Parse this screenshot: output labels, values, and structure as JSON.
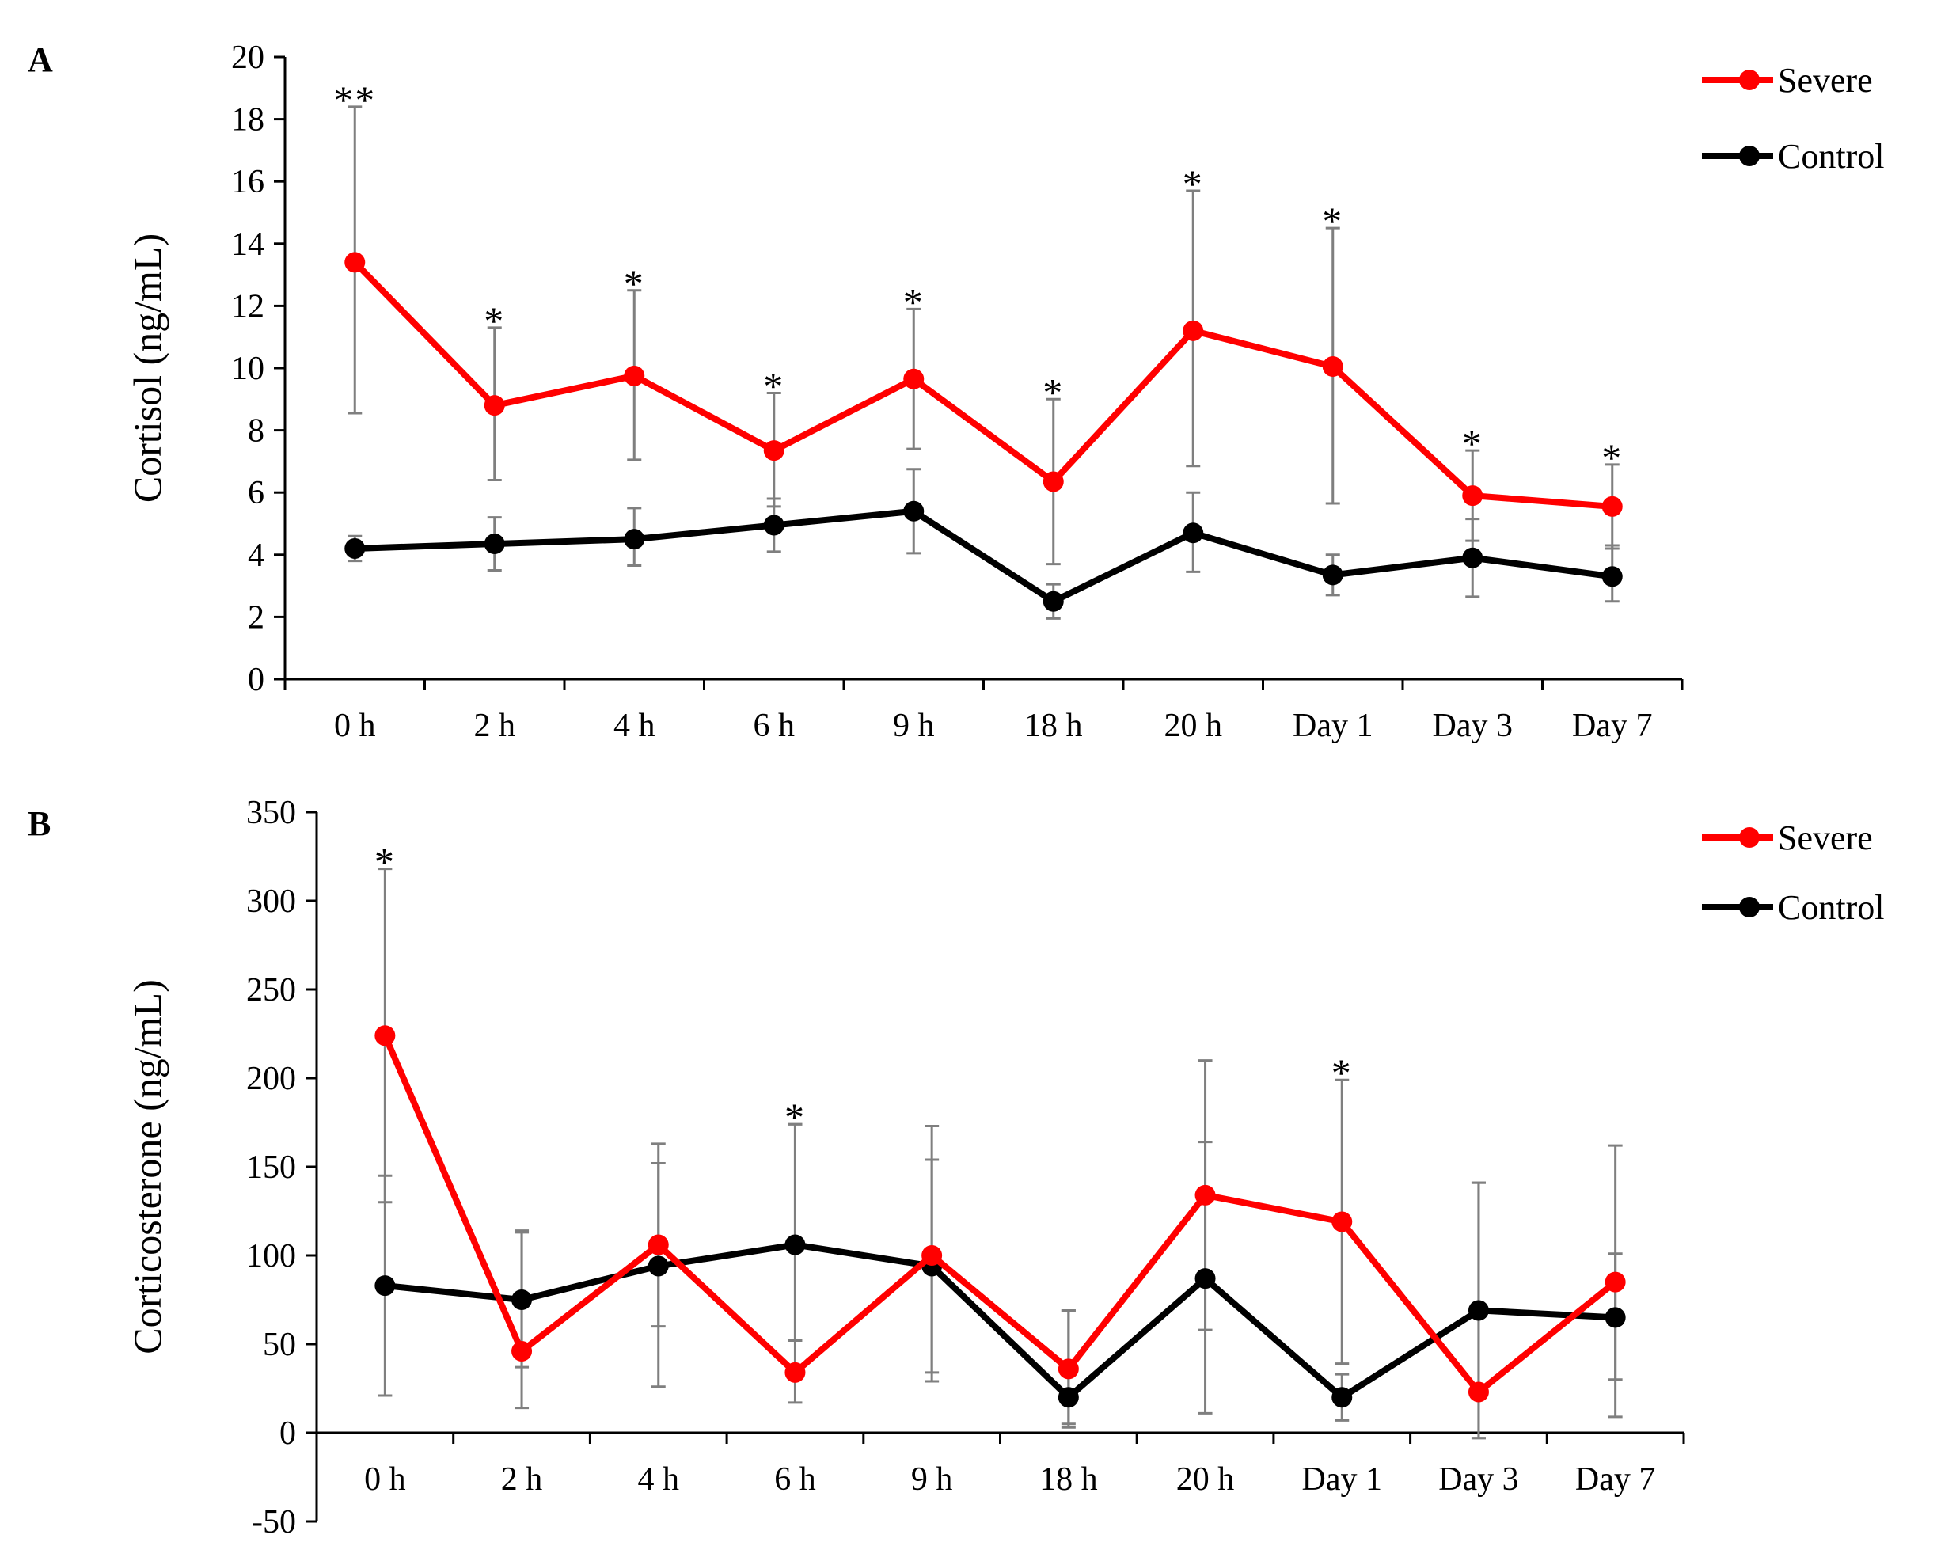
{
  "chart_data": [
    {
      "type": "line",
      "panel_label": "A",
      "title": "",
      "xlabel": "",
      "ylabel": "Cortisol (ng/mL)",
      "categories": [
        "0 h",
        "2 h",
        "4 h",
        "6 h",
        "9 h",
        "18 h",
        "20 h",
        "Day 1",
        "Day 3",
        "Day 7"
      ],
      "ylim": [
        0,
        20
      ],
      "yticks": [
        0,
        2,
        4,
        6,
        8,
        10,
        12,
        14,
        16,
        18,
        20
      ],
      "grid": false,
      "legend_position": "top-right",
      "series": [
        {
          "name": "Severe",
          "color": "#ff0000",
          "values": [
            13.4,
            8.8,
            9.75,
            7.35,
            9.65,
            6.35,
            11.2,
            10.05,
            5.9,
            5.55
          ],
          "error_upper": [
            18.4,
            11.3,
            12.5,
            9.2,
            11.9,
            9.0,
            15.7,
            14.5,
            7.35,
            6.9
          ],
          "error_lower": [
            8.55,
            6.4,
            7.05,
            5.55,
            7.4,
            3.7,
            6.85,
            5.65,
            4.45,
            4.2
          ]
        },
        {
          "name": "Control",
          "color": "#000000",
          "values": [
            4.2,
            4.35,
            4.5,
            4.95,
            5.4,
            2.5,
            4.7,
            3.35,
            3.9,
            3.3
          ],
          "error_upper": [
            4.6,
            5.2,
            5.5,
            5.8,
            6.75,
            3.05,
            6.0,
            4.0,
            5.15,
            4.3
          ],
          "error_lower": [
            3.8,
            3.5,
            3.65,
            4.1,
            4.05,
            1.95,
            3.45,
            2.7,
            2.65,
            2.5
          ]
        }
      ],
      "annotations": [
        "**",
        "*",
        "*",
        "*",
        "*",
        "*",
        "*",
        "*",
        "*",
        "*"
      ]
    },
    {
      "type": "line",
      "panel_label": "B",
      "title": "",
      "xlabel": "",
      "ylabel": "Corticosterone (ng/mL)",
      "categories": [
        "0 h",
        "2 h",
        "4 h",
        "6 h",
        "9 h",
        "18 h",
        "20 h",
        "Day 1",
        "Day 3",
        "Day 7"
      ],
      "ylim": [
        -50,
        350
      ],
      "yticks": [
        -50,
        0,
        50,
        100,
        150,
        200,
        250,
        300,
        350
      ],
      "grid": false,
      "legend_position": "top-right",
      "series": [
        {
          "name": "Severe",
          "color": "#ff0000",
          "values": [
            224,
            46,
            106,
            34,
            100,
            36,
            134,
            119,
            23,
            85
          ],
          "error_upper": [
            318,
            114,
            163,
            174,
            173,
            69,
            210,
            199,
            141,
            162
          ],
          "error_lower": [
            130,
            14,
            60,
            17,
            29,
            5,
            58,
            39,
            -3,
            9
          ]
        },
        {
          "name": "Control",
          "color": "#000000",
          "values": [
            83,
            75,
            94,
            106,
            94,
            20,
            87,
            20,
            69,
            65
          ],
          "error_upper": [
            145,
            113,
            152,
            174,
            154,
            69,
            164,
            33,
            141,
            101
          ],
          "error_lower": [
            21,
            37,
            26,
            52,
            34,
            3,
            11,
            7,
            -3,
            30
          ]
        }
      ],
      "annotations": [
        "*",
        "",
        "",
        "*",
        "",
        "",
        "",
        "*",
        "",
        ""
      ]
    }
  ]
}
